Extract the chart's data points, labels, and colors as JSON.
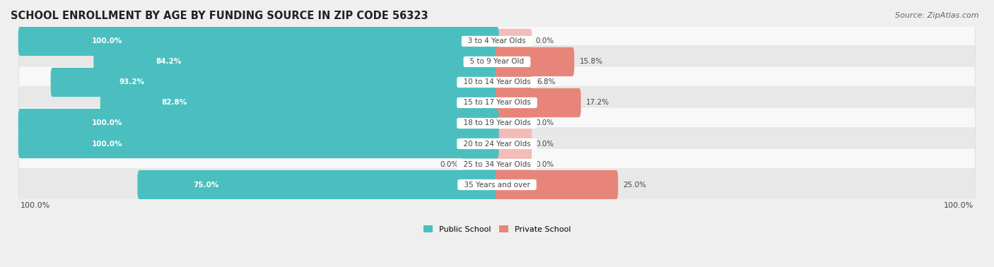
{
  "title": "SCHOOL ENROLLMENT BY AGE BY FUNDING SOURCE IN ZIP CODE 56323",
  "source": "Source: ZipAtlas.com",
  "categories": [
    "3 to 4 Year Olds",
    "5 to 9 Year Old",
    "10 to 14 Year Olds",
    "15 to 17 Year Olds",
    "18 to 19 Year Olds",
    "20 to 24 Year Olds",
    "25 to 34 Year Olds",
    "35 Years and over"
  ],
  "public_values": [
    100.0,
    84.2,
    93.2,
    82.8,
    100.0,
    100.0,
    0.0,
    75.0
  ],
  "private_values": [
    0.0,
    15.8,
    6.8,
    17.2,
    0.0,
    0.0,
    0.0,
    25.0
  ],
  "public_color": "#4BBFC0",
  "private_color": "#E8857A",
  "public_color_light": "#9DD5D5",
  "private_color_light": "#F2BCB8",
  "bg_color": "#EFEFEF",
  "row_bg_light": "#F8F8F8",
  "row_bg_dark": "#E8E8E8",
  "label_white": "#FFFFFF",
  "label_dark": "#444444",
  "axis_label_left": "100.0%",
  "axis_label_right": "100.0%",
  "legend_public": "Public School",
  "legend_private": "Private School",
  "title_fontsize": 10.5,
  "source_fontsize": 8,
  "bar_label_fontsize": 7.5,
  "category_fontsize": 7.5,
  "axis_fontsize": 8,
  "legend_fontsize": 8
}
